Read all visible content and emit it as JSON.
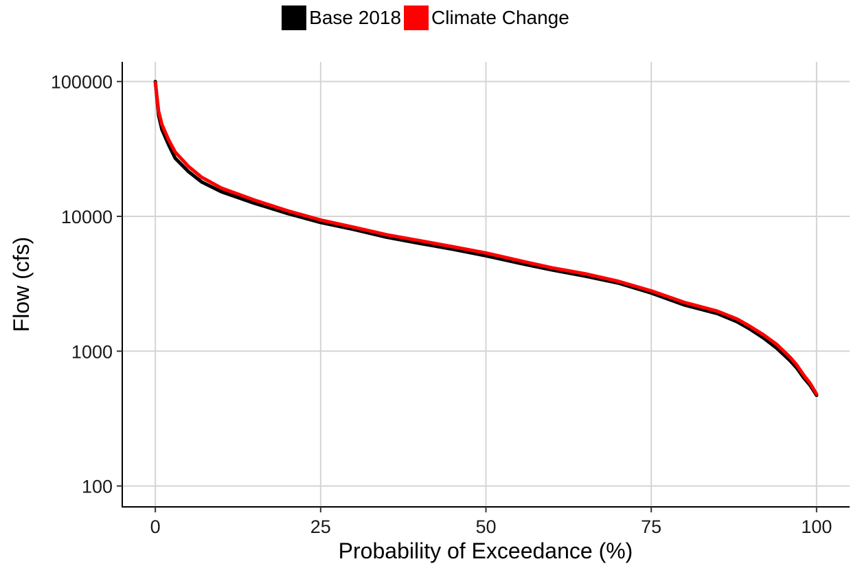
{
  "chart_data": {
    "type": "line",
    "xlabel": "Probability of Exceedance (%)",
    "ylabel": "Flow (cfs)",
    "xlim": [
      -5,
      105
    ],
    "ylim": [
      70,
      140000
    ],
    "y_scale": "log",
    "grid": true,
    "legend_position": "top",
    "x_ticks": [
      0,
      25,
      50,
      75,
      100
    ],
    "x_tick_labels": [
      "0",
      "25",
      "50",
      "75",
      "100"
    ],
    "y_ticks": [
      100,
      1000,
      10000,
      100000
    ],
    "y_tick_labels": [
      "100",
      "1000",
      "10000",
      "100000"
    ],
    "series": [
      {
        "name": "Base 2018",
        "color": "#000000",
        "x": [
          0,
          0.5,
          1,
          2,
          3,
          5,
          7,
          10,
          15,
          20,
          25,
          30,
          35,
          40,
          45,
          50,
          55,
          60,
          65,
          70,
          75,
          80,
          85,
          88,
          90,
          92,
          94,
          96,
          97,
          98,
          99,
          100
        ],
        "y": [
          100000,
          56000,
          44000,
          34000,
          27000,
          21500,
          18000,
          15200,
          12500,
          10500,
          9000,
          8000,
          7000,
          6300,
          5700,
          5100,
          4500,
          4000,
          3600,
          3200,
          2700,
          2200,
          1900,
          1650,
          1450,
          1250,
          1050,
          850,
          750,
          640,
          560,
          470
        ]
      },
      {
        "name": "Climate Change",
        "color": "#ff0000",
        "x": [
          0,
          0.5,
          1,
          2,
          3,
          5,
          7,
          10,
          15,
          20,
          25,
          30,
          35,
          40,
          45,
          50,
          55,
          60,
          65,
          70,
          75,
          80,
          85,
          88,
          90,
          92,
          94,
          96,
          97,
          98,
          99,
          100
        ],
        "y": [
          98000,
          60000,
          48000,
          37000,
          30000,
          23500,
          19500,
          16200,
          13200,
          11000,
          9400,
          8300,
          7300,
          6600,
          5950,
          5350,
          4700,
          4150,
          3750,
          3300,
          2800,
          2300,
          1980,
          1730,
          1520,
          1320,
          1120,
          900,
          790,
          670,
          580,
          480
        ]
      }
    ]
  }
}
